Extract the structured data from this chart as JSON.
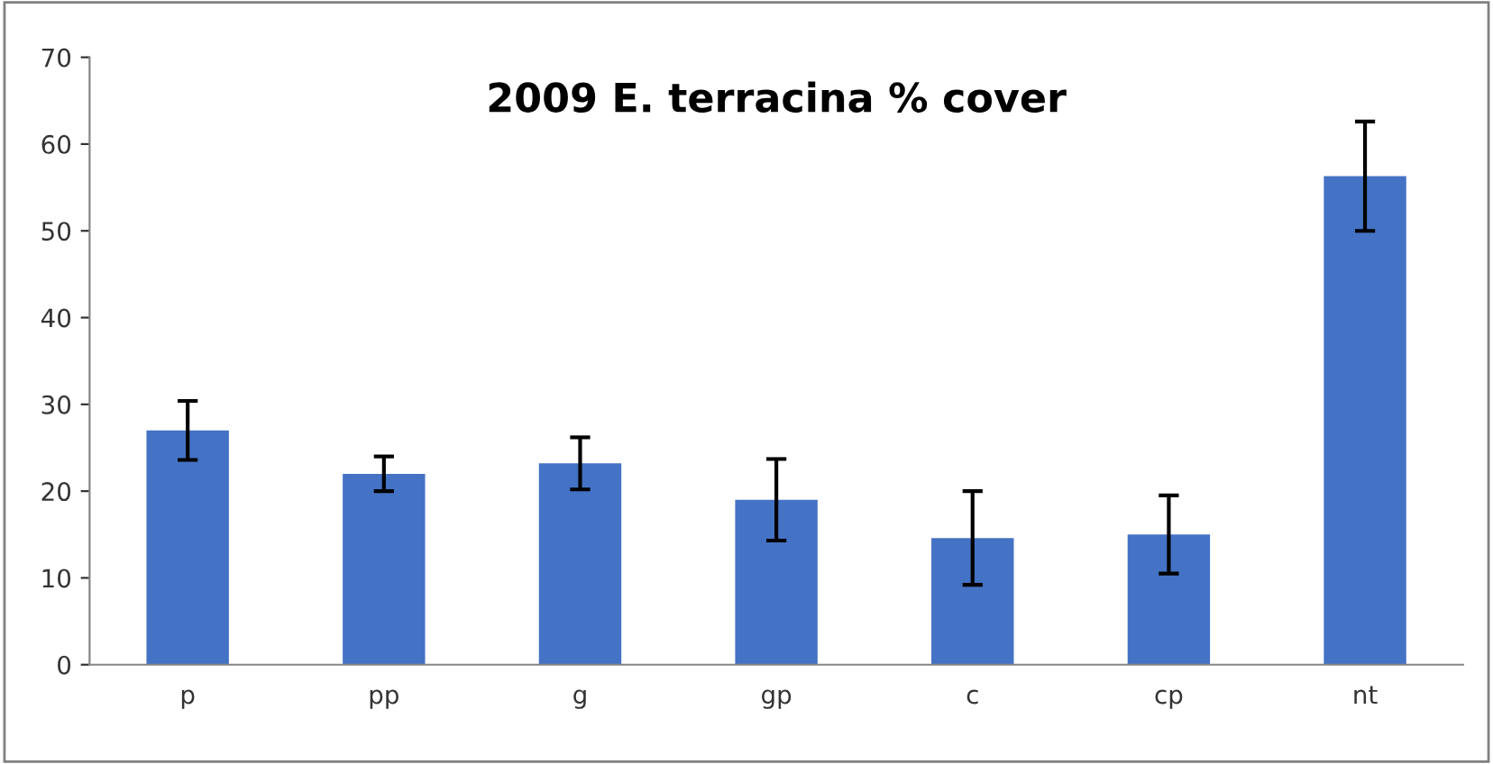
{
  "chart_data": {
    "type": "bar",
    "title": "2009 E. terracina % cover",
    "categories": [
      "p",
      "pp",
      "g",
      "gp",
      "c",
      "cp",
      "nt"
    ],
    "values": [
      27,
      22,
      23.2,
      19,
      14.6,
      15,
      56.3
    ],
    "errors": [
      3.4,
      2,
      3,
      4.7,
      5.4,
      4.5,
      6.3
    ],
    "color": "#4472c4",
    "ylim": [
      0,
      70
    ],
    "yticks": [
      0,
      10,
      20,
      30,
      40,
      50,
      60,
      70
    ],
    "grid": false,
    "legend": false
  }
}
